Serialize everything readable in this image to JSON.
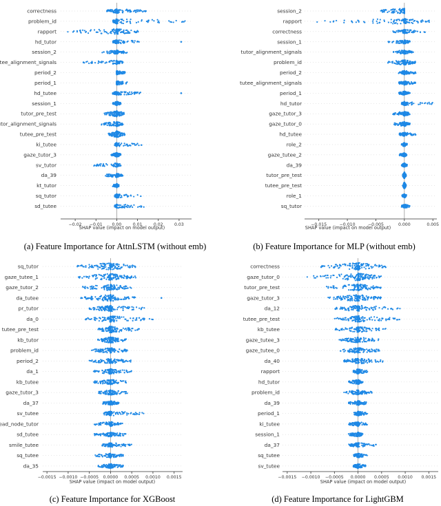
{
  "colors": {
    "dots": "#1e88e5",
    "axis": "#333333",
    "zero": "#999999",
    "grid": "#cccccc"
  },
  "chart_data": [
    {
      "type": "scatter",
      "subtype": "shap-beeswarm",
      "caption": "(a) Feature Importance for AttnLSTM (without emb)",
      "xlabel": "SHAP value (impact on model output)",
      "xlim": [
        -0.027,
        0.036
      ],
      "xticks": [
        -0.02,
        -0.01,
        0.0,
        0.01,
        0.02,
        0.03
      ],
      "xtick_labels": [
        "−0.02",
        "−0.01",
        "0.00",
        "0.01",
        "0.02",
        "0.03"
      ],
      "features": [
        {
          "name": "correctness",
          "min": -0.005,
          "max": 0.014,
          "spread": 0.45,
          "outliers": [
            0.011,
            0.014
          ]
        },
        {
          "name": "problem_id",
          "min": -0.002,
          "max": 0.033,
          "spread": 0.55,
          "outliers": []
        },
        {
          "name": "rapport",
          "min": -0.025,
          "max": 0.011,
          "spread": 0.6,
          "outliers": []
        },
        {
          "name": "hd_tutor",
          "min": -0.002,
          "max": 0.012,
          "spread": 0.35,
          "outliers": [
            0.031
          ]
        },
        {
          "name": "session_2",
          "min": -0.007,
          "max": 0.005,
          "spread": 0.35,
          "outliers": []
        },
        {
          "name": "tutee_alignment_signals",
          "min": -0.016,
          "max": 0.003,
          "spread": 0.35,
          "outliers": [
            -0.016
          ]
        },
        {
          "name": "period_2",
          "min": 0.0,
          "max": 0.005,
          "spread": 0.35,
          "outliers": []
        },
        {
          "name": "period_1",
          "min": 0.0,
          "max": 0.005,
          "spread": 0.35,
          "outliers": []
        },
        {
          "name": "hd_tutee",
          "min": -0.002,
          "max": 0.012,
          "spread": 0.35,
          "outliers": [
            0.031
          ]
        },
        {
          "name": "session_1",
          "min": -0.002,
          "max": 0.002,
          "spread": 0.35,
          "outliers": []
        },
        {
          "name": "tutor_pre_test",
          "min": -0.006,
          "max": 0.004,
          "spread": 0.7,
          "outliers": []
        },
        {
          "name": "tutor_alignment_signals",
          "min": -0.008,
          "max": 0.003,
          "spread": 0.5,
          "outliers": []
        },
        {
          "name": "tutee_pre_test",
          "min": -0.004,
          "max": 0.004,
          "spread": 0.8,
          "outliers": []
        },
        {
          "name": "ki_tutee",
          "min": -0.001,
          "max": 0.012,
          "spread": 0.35,
          "outliers": []
        },
        {
          "name": "gaze_tutor_3",
          "min": -0.003,
          "max": 0.002,
          "spread": 0.45,
          "outliers": []
        },
        {
          "name": "sv_tutor",
          "min": -0.011,
          "max": 0.002,
          "spread": 0.35,
          "outliers": []
        },
        {
          "name": "da_39",
          "min": -0.006,
          "max": 0.003,
          "spread": 0.35,
          "outliers": []
        },
        {
          "name": "kt_tutor",
          "min": -0.002,
          "max": 0.001,
          "spread": 0.35,
          "outliers": []
        },
        {
          "name": "sq_tutor",
          "min": -0.001,
          "max": 0.012,
          "spread": 0.35,
          "outliers": []
        },
        {
          "name": "sd_tutee",
          "min": -0.001,
          "max": 0.014,
          "spread": 0.35,
          "outliers": []
        }
      ]
    },
    {
      "type": "scatter",
      "subtype": "shap-beeswarm",
      "caption": "(b) Feature Importance for MLP (without emb)",
      "xlabel": "SHAP value (impact on model output)",
      "xlim": [
        -0.0175,
        0.0057
      ],
      "xticks": [
        -0.015,
        -0.01,
        -0.005,
        0.0,
        0.005
      ],
      "xtick_labels": [
        "−0.015",
        "−0.010",
        "−0.005",
        "0.000",
        "0.005"
      ],
      "features": [
        {
          "name": "session_2",
          "min": -0.0045,
          "max": -0.0045,
          "spread": 0.6,
          "outliers": []
        },
        {
          "name": "rapport",
          "min": -0.016,
          "max": 0.0045,
          "spread": 0.6,
          "outliers": []
        },
        {
          "name": "correctness",
          "min": -0.002,
          "max": 0.004,
          "spread": 0.35,
          "outliers": []
        },
        {
          "name": "session_1",
          "min": -0.003,
          "max": 0.001,
          "spread": 0.35,
          "outliers": []
        },
        {
          "name": "tutor_alignment_signals",
          "min": -0.002,
          "max": 0.002,
          "spread": 0.35,
          "outliers": []
        },
        {
          "name": "problem_id",
          "min": -0.003,
          "max": 0.002,
          "spread": 0.55,
          "outliers": []
        },
        {
          "name": "period_2",
          "min": -0.001,
          "max": 0.002,
          "spread": 0.35,
          "outliers": []
        },
        {
          "name": "tutee_alignment_signals",
          "min": -0.001,
          "max": 0.002,
          "spread": 0.35,
          "outliers": []
        },
        {
          "name": "period_1",
          "min": -0.001,
          "max": 0.001,
          "spread": 0.35,
          "outliers": []
        },
        {
          "name": "hd_tutor",
          "min": -0.0005,
          "max": 0.005,
          "spread": 0.35,
          "outliers": []
        },
        {
          "name": "gaze_tutor_3",
          "min": -0.002,
          "max": 0.001,
          "spread": 0.45,
          "outliers": []
        },
        {
          "name": "gaze_tutor_0",
          "min": -0.002,
          "max": 0.001,
          "spread": 0.45,
          "outliers": []
        },
        {
          "name": "hd_tutee",
          "min": -0.001,
          "max": 0.002,
          "spread": 0.35,
          "outliers": []
        },
        {
          "name": "role_2",
          "min": -0.0005,
          "max": 0.0005,
          "spread": 0.35,
          "outliers": []
        },
        {
          "name": "gaze_tutee_2",
          "min": -0.001,
          "max": 0.0005,
          "spread": 0.35,
          "outliers": []
        },
        {
          "name": "da_39",
          "min": -0.0005,
          "max": 0.0005,
          "spread": 0.35,
          "outliers": []
        },
        {
          "name": "tutor_pre_test",
          "min": -0.0003,
          "max": 0.0003,
          "spread": 0.8,
          "outliers": []
        },
        {
          "name": "tutee_pre_test",
          "min": -0.0003,
          "max": 0.0003,
          "spread": 0.8,
          "outliers": []
        },
        {
          "name": "role_1",
          "min": -0.0004,
          "max": 0.0004,
          "spread": 0.35,
          "outliers": []
        },
        {
          "name": "sq_tutor",
          "min": -0.0005,
          "max": 0.001,
          "spread": 0.35,
          "outliers": []
        }
      ]
    },
    {
      "type": "scatter",
      "subtype": "shap-beeswarm",
      "caption": "(c) Feature Importance for XGBoost",
      "xlabel": "SHAP value (impact on model output)",
      "xlim": [
        -0.0016,
        0.0017
      ],
      "xticks": [
        -0.0015,
        -0.001,
        -0.0005,
        0.0,
        0.0005,
        0.001,
        0.0015
      ],
      "xtick_labels": [
        "−0.0015",
        "−0.0010",
        "−0.0005",
        "0.0000",
        "0.0005",
        "0.0010",
        "0.0015"
      ],
      "features": [
        {
          "name": "sq_tutor",
          "min": -0.0008,
          "max": 0.0006,
          "spread": 0.9,
          "outliers": []
        },
        {
          "name": "gaze_tutee_1",
          "min": -0.0008,
          "max": 0.0006,
          "spread": 0.8,
          "outliers": []
        },
        {
          "name": "gaze_tutor_2",
          "min": -0.0007,
          "max": 0.0005,
          "spread": 0.7,
          "outliers": []
        },
        {
          "name": "da_tutee",
          "min": -0.0007,
          "max": 0.0006,
          "spread": 0.8,
          "outliers": [
            0.0012
          ]
        },
        {
          "name": "pr_tutor",
          "min": -0.0005,
          "max": 0.0008,
          "spread": 0.7,
          "outliers": []
        },
        {
          "name": "da_0",
          "min": -0.0006,
          "max": 0.001,
          "spread": 0.7,
          "outliers": []
        },
        {
          "name": "tutee_pre_test",
          "min": -0.0003,
          "max": 0.0007,
          "spread": 0.8,
          "outliers": []
        },
        {
          "name": "kb_tutor",
          "min": -0.0003,
          "max": 0.0004,
          "spread": 0.7,
          "outliers": []
        },
        {
          "name": "problem_id",
          "min": -0.0005,
          "max": 0.0004,
          "spread": 0.55,
          "outliers": []
        },
        {
          "name": "period_2",
          "min": -0.0005,
          "max": 0.0005,
          "spread": 0.55,
          "outliers": []
        },
        {
          "name": "da_1",
          "min": -0.0004,
          "max": 0.0005,
          "spread": 0.55,
          "outliers": []
        },
        {
          "name": "kb_tutee",
          "min": -0.0004,
          "max": 0.0004,
          "spread": 0.55,
          "outliers": []
        },
        {
          "name": "gaze_tutor_3",
          "min": -0.0003,
          "max": 0.0004,
          "spread": 0.55,
          "outliers": []
        },
        {
          "name": "da_37",
          "min": -0.0002,
          "max": 0.0002,
          "spread": 0.45,
          "outliers": []
        },
        {
          "name": "sv_tutee",
          "min": -0.0002,
          "max": 0.0008,
          "spread": 0.45,
          "outliers": []
        },
        {
          "name": "head_node_tutor",
          "min": -0.0004,
          "max": 0.0003,
          "spread": 0.45,
          "outliers": []
        },
        {
          "name": "sd_tutee",
          "min": -0.0004,
          "max": 0.0004,
          "spread": 0.45,
          "outliers": []
        },
        {
          "name": "smile_tutee",
          "min": -0.0002,
          "max": 0.0005,
          "spread": 0.45,
          "outliers": []
        },
        {
          "name": "sq_tutee",
          "min": -0.0004,
          "max": 0.0003,
          "spread": 0.45,
          "outliers": []
        },
        {
          "name": "da_35",
          "min": -0.0003,
          "max": 0.0003,
          "spread": 0.45,
          "outliers": []
        }
      ]
    },
    {
      "type": "scatter",
      "subtype": "shap-beeswarm",
      "caption": "(d) Feature Importance for LightGBM",
      "xlabel": "SHAP value (impact on model output)",
      "xlim": [
        -0.0016,
        0.0017
      ],
      "xticks": [
        -0.0015,
        -0.001,
        -0.0005,
        0.0,
        0.0005,
        0.001,
        0.0015
      ],
      "xtick_labels": [
        "−0.0015",
        "−0.0010",
        "−0.0005",
        "0.0000",
        "0.0005",
        "0.0010",
        "0.0015"
      ],
      "features": [
        {
          "name": "correctness",
          "min": -0.0008,
          "max": 0.0006,
          "spread": 0.9,
          "outliers": []
        },
        {
          "name": "gaze_tutor_0",
          "min": -0.0011,
          "max": 0.0005,
          "spread": 0.9,
          "outliers": []
        },
        {
          "name": "tutor_pre_test",
          "min": -0.0007,
          "max": 0.0005,
          "spread": 0.8,
          "outliers": []
        },
        {
          "name": "gaze_tutor_3",
          "min": -0.0007,
          "max": 0.0005,
          "spread": 0.8,
          "outliers": []
        },
        {
          "name": "da_12",
          "min": -0.0005,
          "max": 0.0009,
          "spread": 0.7,
          "outliers": []
        },
        {
          "name": "tutee_pre_test",
          "min": -0.0005,
          "max": 0.0009,
          "spread": 0.7,
          "outliers": []
        },
        {
          "name": "kb_tutee",
          "min": -0.0005,
          "max": 0.0006,
          "spread": 0.6,
          "outliers": []
        },
        {
          "name": "gaze_tutee_3",
          "min": -0.0004,
          "max": 0.0005,
          "spread": 0.6,
          "outliers": []
        },
        {
          "name": "gaze_tutee_0",
          "min": -0.0004,
          "max": 0.0005,
          "spread": 0.6,
          "outliers": []
        },
        {
          "name": "da_40",
          "min": -0.0003,
          "max": 0.0006,
          "spread": 0.6,
          "outliers": []
        },
        {
          "name": "rapport",
          "min": -0.0001,
          "max": 0.0002,
          "spread": 0.5,
          "outliers": []
        },
        {
          "name": "hd_tutor",
          "min": -0.0002,
          "max": 0.0001,
          "spread": 0.5,
          "outliers": []
        },
        {
          "name": "problem_id",
          "min": -0.0003,
          "max": 0.0003,
          "spread": 0.5,
          "outliers": []
        },
        {
          "name": "da_39",
          "min": -0.0002,
          "max": 0.0002,
          "spread": 0.45,
          "outliers": []
        },
        {
          "name": "period_1",
          "min": -0.0001,
          "max": 0.0002,
          "spread": 0.45,
          "outliers": []
        },
        {
          "name": "ki_tutee",
          "min": -0.0002,
          "max": 0.0002,
          "spread": 0.45,
          "outliers": []
        },
        {
          "name": "session_1",
          "min": -0.0002,
          "max": 0.0001,
          "spread": 0.45,
          "outliers": []
        },
        {
          "name": "da_37",
          "min": -0.0002,
          "max": 0.0004,
          "spread": 0.45,
          "outliers": []
        },
        {
          "name": "sq_tutee",
          "min": -0.0001,
          "max": 0.0002,
          "spread": 0.45,
          "outliers": []
        },
        {
          "name": "sv_tutee",
          "min": -0.0001,
          "max": 0.0002,
          "spread": 0.45,
          "outliers": []
        }
      ]
    }
  ]
}
